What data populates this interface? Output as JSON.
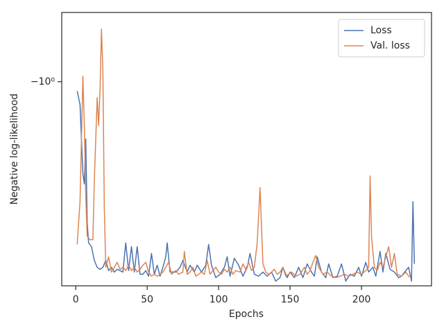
{
  "chart_data": {
    "type": "line",
    "x_label": "Epochs",
    "y_label": "Negative log-likelihood",
    "yscale": "symlog",
    "xlim": [
      -9.8,
      249
    ],
    "xticks": [
      0,
      50,
      100,
      150,
      200
    ],
    "ylim": [
      -5.46,
      -0.75
    ],
    "yticks": [
      {
        "value": -1,
        "label": "−10⁰"
      }
    ],
    "grid": false,
    "legend": "upper right",
    "series": [
      {
        "name": "Loss",
        "color": "#4c72b0",
        "x": [
          1,
          3,
          5,
          6,
          7,
          8,
          9,
          11,
          13,
          15,
          17,
          19,
          21,
          23,
          25,
          27,
          29,
          31,
          33,
          35,
          37,
          39,
          41,
          43,
          45,
          47,
          49,
          51,
          53,
          55,
          57,
          59,
          61,
          63,
          64,
          66,
          70,
          73,
          75,
          78,
          80,
          83,
          85,
          88,
          91,
          93,
          95,
          98,
          101,
          104,
          106,
          108,
          111,
          114,
          117,
          120,
          122,
          125,
          128,
          131,
          134,
          137,
          140,
          143,
          145,
          148,
          150,
          153,
          156,
          159,
          162,
          165,
          167,
          169,
          172,
          175,
          177,
          180,
          183,
          186,
          189,
          192,
          195,
          198,
          200,
          203,
          205,
          208,
          210,
          213,
          215,
          217,
          220,
          223,
          226,
          228,
          231,
          233,
          235,
          236,
          237
        ],
        "values": [
          -1.08,
          -1.21,
          -2.15,
          -2.34,
          -1.61,
          -3.22,
          -3.82,
          -3.94,
          -4.42,
          -4.68,
          -4.76,
          -4.68,
          -4.42,
          -4.81,
          -4.68,
          -4.87,
          -4.76,
          -4.81,
          -4.87,
          -3.82,
          -4.81,
          -3.94,
          -4.87,
          -3.94,
          -4.96,
          -4.96,
          -4.81,
          -5.04,
          -4.17,
          -4.96,
          -4.6,
          -5.04,
          -4.68,
          -4.29,
          -3.82,
          -4.87,
          -4.87,
          -4.68,
          -4.42,
          -4.87,
          -4.6,
          -4.87,
          -4.6,
          -4.87,
          -4.6,
          -3.87,
          -4.6,
          -5.1,
          -4.96,
          -4.68,
          -4.29,
          -5.04,
          -4.34,
          -4.6,
          -5.04,
          -4.68,
          -4.17,
          -4.96,
          -5.04,
          -4.87,
          -5.04,
          -4.87,
          -5.25,
          -5.1,
          -4.68,
          -5.1,
          -4.87,
          -5.1,
          -4.68,
          -5.1,
          -4.55,
          -4.87,
          -5.04,
          -4.29,
          -4.87,
          -5.1,
          -4.55,
          -5.1,
          -5.04,
          -4.55,
          -5.25,
          -4.96,
          -5.04,
          -4.68,
          -5.04,
          -4.49,
          -4.87,
          -4.68,
          -5.04,
          -4.1,
          -4.87,
          -4.17,
          -4.76,
          -4.87,
          -5.1,
          -5.04,
          -4.81,
          -4.68,
          -5.25,
          -2.71,
          -4.55
        ]
      },
      {
        "name": "Val. loss",
        "color": "#dd8452",
        "x": [
          1,
          3,
          5,
          6,
          7,
          8,
          10,
          12,
          13,
          15,
          16,
          17,
          18,
          19,
          20,
          21,
          23,
          25,
          27,
          29,
          31,
          33,
          35,
          37,
          39,
          41,
          43,
          45,
          47,
          49,
          51,
          53,
          55,
          57,
          59,
          61,
          63,
          65,
          67,
          70,
          72,
          75,
          76,
          78,
          80,
          82,
          84,
          86,
          88,
          90,
          92,
          94,
          96,
          98,
          100,
          102,
          104,
          106,
          108,
          110,
          112,
          115,
          117,
          119,
          121,
          123,
          125,
          127,
          129,
          131,
          133,
          135,
          137,
          139,
          141,
          143,
          145,
          147,
          149,
          151,
          154,
          157,
          160,
          162,
          164,
          166,
          168,
          170,
          173,
          176,
          179,
          182,
          185,
          188,
          191,
          194,
          197,
          200,
          203,
          205,
          206,
          207,
          209,
          211,
          213,
          215,
          217,
          219,
          221,
          223,
          225,
          228,
          231,
          233,
          235
        ],
        "values": [
          -3.87,
          -2.71,
          -0.98,
          -1.44,
          -2.56,
          -3.61,
          -3.72,
          -3.72,
          -2.28,
          -1.14,
          -1.44,
          -1.08,
          -0.81,
          -0.96,
          -2.87,
          -4.68,
          -4.29,
          -4.87,
          -4.68,
          -4.49,
          -4.76,
          -4.68,
          -4.81,
          -4.6,
          -4.81,
          -4.68,
          -4.87,
          -4.76,
          -4.6,
          -4.49,
          -4.87,
          -5.04,
          -4.96,
          -5.04,
          -4.96,
          -4.87,
          -4.68,
          -4.49,
          -4.96,
          -4.81,
          -4.96,
          -4.87,
          -4.1,
          -4.96,
          -4.87,
          -4.68,
          -5.04,
          -4.96,
          -4.87,
          -4.96,
          -4.42,
          -4.96,
          -4.81,
          -4.68,
          -4.87,
          -4.96,
          -4.76,
          -4.87,
          -4.68,
          -4.96,
          -4.81,
          -4.87,
          -4.55,
          -4.76,
          -4.49,
          -4.81,
          -4.68,
          -3.82,
          -2.41,
          -4.55,
          -4.87,
          -4.96,
          -4.87,
          -4.76,
          -4.96,
          -4.87,
          -4.68,
          -5.04,
          -4.96,
          -4.87,
          -5.04,
          -4.96,
          -4.68,
          -4.96,
          -4.81,
          -4.49,
          -4.24,
          -4.68,
          -4.96,
          -4.87,
          -5.04,
          -5.1,
          -5.04,
          -4.96,
          -5.04,
          -4.96,
          -4.87,
          -4.96,
          -4.81,
          -4.68,
          -2.19,
          -3.61,
          -4.68,
          -4.81,
          -4.49,
          -4.68,
          -4.29,
          -3.94,
          -4.68,
          -4.17,
          -4.96,
          -5.04,
          -4.87,
          -5.04,
          -5.1
        ]
      }
    ]
  }
}
